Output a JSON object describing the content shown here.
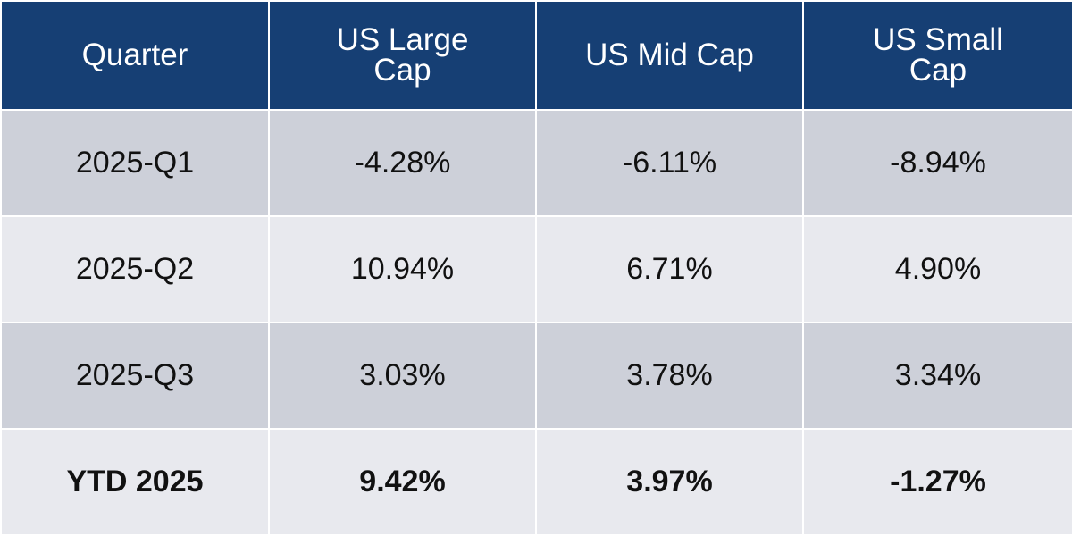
{
  "table": {
    "header": [
      "Quarter",
      "US Large Cap",
      "US Mid Cap",
      "US Small Cap"
    ],
    "rows": [
      [
        "2025-Q1",
        "-4.28%",
        "-6.11%",
        "-8.94%"
      ],
      [
        "2025-Q2",
        "10.94%",
        "6.71%",
        "4.90%"
      ],
      [
        "2025-Q3",
        "3.03%",
        "3.78%",
        "3.34%"
      ],
      [
        "YTD 2025",
        "9.42%",
        "3.97%",
        "-1.27%"
      ]
    ]
  }
}
